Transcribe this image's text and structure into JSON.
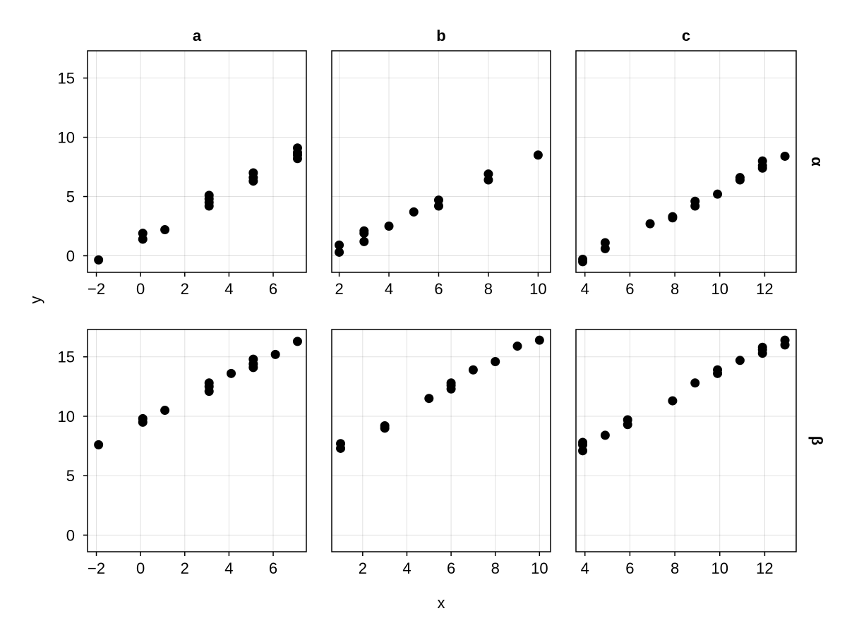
{
  "chart_data": {
    "type": "scatter",
    "layout": "facet-grid",
    "xlabel": "x",
    "ylabel": "y",
    "columns": [
      "a",
      "b",
      "c"
    ],
    "rows": [
      "α",
      "β"
    ],
    "ylim": [
      -1.4,
      17.3
    ],
    "yticks": [
      0,
      5,
      10,
      15
    ],
    "grid": true,
    "column_axes": [
      {
        "name": "a",
        "xlim": [
          -2.4,
          7.5
        ],
        "xticks": [
          -2,
          0,
          2,
          4,
          6
        ],
        "xtick_labels": [
          "−2",
          "0",
          "2",
          "4",
          "6"
        ]
      },
      {
        "name": "b",
        "xlim": [
          1.7,
          10.5
        ],
        "xticks": [
          2,
          4,
          6,
          8,
          10
        ],
        "xtick_labels": [
          "2",
          "4",
          "6",
          "8",
          "10"
        ]
      },
      {
        "name": "c",
        "xlim": [
          3.6,
          13.4
        ],
        "xticks": [
          4,
          6,
          8,
          10,
          12
        ],
        "xtick_labels": [
          "4",
          "6",
          "8",
          "10",
          "12"
        ]
      }
    ],
    "row_axes": [
      {
        "name": "α",
        "xlim_override": null
      },
      {
        "name": "β",
        "xlim_override": {
          "b": [
            0.6,
            10.5
          ]
        },
        "xticks_override": {
          "b": [
            2,
            4,
            6,
            8,
            10
          ]
        }
      }
    ],
    "ytick_labels": [
      "0",
      "5",
      "10",
      "15"
    ],
    "panels": [
      {
        "row": "α",
        "column": "a",
        "points": [
          [
            -1.9,
            -0.35
          ],
          [
            0.1,
            1.4
          ],
          [
            0.1,
            1.9
          ],
          [
            1.1,
            2.2
          ],
          [
            3.1,
            4.2
          ],
          [
            3.1,
            4.5
          ],
          [
            3.1,
            4.8
          ],
          [
            3.1,
            5.1
          ],
          [
            5.1,
            6.3
          ],
          [
            5.1,
            6.6
          ],
          [
            5.1,
            7.0
          ],
          [
            7.1,
            8.2
          ],
          [
            7.1,
            8.5
          ],
          [
            7.1,
            8.7
          ],
          [
            7.1,
            9.1
          ]
        ]
      },
      {
        "row": "α",
        "column": "b",
        "points": [
          [
            2.0,
            0.3
          ],
          [
            2.0,
            0.9
          ],
          [
            3.0,
            1.2
          ],
          [
            3.0,
            1.9
          ],
          [
            3.0,
            2.1
          ],
          [
            4.0,
            2.5
          ],
          [
            5.0,
            3.7
          ],
          [
            6.0,
            4.2
          ],
          [
            6.0,
            4.7
          ],
          [
            8.0,
            6.4
          ],
          [
            8.0,
            6.9
          ],
          [
            10.0,
            8.5
          ]
        ]
      },
      {
        "row": "α",
        "column": "c",
        "points": [
          [
            3.9,
            -0.5
          ],
          [
            3.9,
            -0.3
          ],
          [
            4.9,
            0.6
          ],
          [
            4.9,
            1.1
          ],
          [
            6.9,
            2.7
          ],
          [
            7.9,
            3.2
          ],
          [
            7.9,
            3.3
          ],
          [
            8.9,
            4.2
          ],
          [
            8.9,
            4.6
          ],
          [
            9.9,
            5.2
          ],
          [
            10.9,
            6.4
          ],
          [
            10.9,
            6.6
          ],
          [
            11.9,
            7.4
          ],
          [
            11.9,
            7.6
          ],
          [
            11.9,
            8.0
          ],
          [
            12.9,
            8.4
          ]
        ]
      },
      {
        "row": "β",
        "column": "a",
        "points": [
          [
            -1.9,
            7.6
          ],
          [
            0.1,
            9.5
          ],
          [
            0.1,
            9.8
          ],
          [
            1.1,
            10.5
          ],
          [
            3.1,
            12.1
          ],
          [
            3.1,
            12.5
          ],
          [
            3.1,
            12.8
          ],
          [
            4.1,
            13.6
          ],
          [
            5.1,
            14.1
          ],
          [
            5.1,
            14.4
          ],
          [
            5.1,
            14.8
          ],
          [
            6.1,
            15.2
          ],
          [
            7.1,
            16.3
          ]
        ]
      },
      {
        "row": "β",
        "column": "b",
        "points": [
          [
            1.0,
            7.3
          ],
          [
            1.0,
            7.7
          ],
          [
            3.0,
            9.0
          ],
          [
            3.0,
            9.2
          ],
          [
            5.0,
            11.5
          ],
          [
            6.0,
            12.3
          ],
          [
            6.0,
            12.6
          ],
          [
            6.0,
            12.8
          ],
          [
            7.0,
            13.9
          ],
          [
            8.0,
            14.6
          ],
          [
            9.0,
            15.9
          ],
          [
            10.0,
            16.4
          ]
        ]
      },
      {
        "row": "β",
        "column": "c",
        "points": [
          [
            3.9,
            7.1
          ],
          [
            3.9,
            7.6
          ],
          [
            3.9,
            7.8
          ],
          [
            4.9,
            8.4
          ],
          [
            5.9,
            9.3
          ],
          [
            5.9,
            9.7
          ],
          [
            7.9,
            11.3
          ],
          [
            8.9,
            12.8
          ],
          [
            9.9,
            13.6
          ],
          [
            9.9,
            13.9
          ],
          [
            10.9,
            14.7
          ],
          [
            11.9,
            15.3
          ],
          [
            11.9,
            15.6
          ],
          [
            11.9,
            15.8
          ],
          [
            12.9,
            16.0
          ],
          [
            12.9,
            16.4
          ]
        ]
      }
    ]
  }
}
